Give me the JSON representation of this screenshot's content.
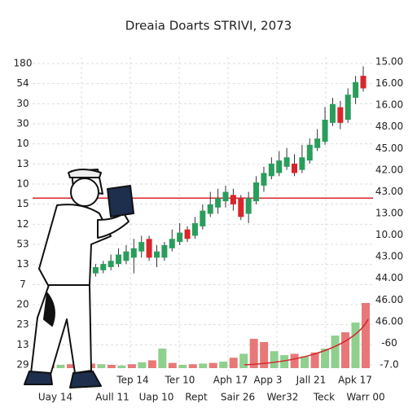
{
  "chart_data": {
    "type": "candlestick",
    "title": "Dreaia Doarts STRIVI, 2073",
    "left_axis_labels": [
      "180",
      "54",
      "30",
      "30",
      "10",
      "13",
      "10",
      "15",
      "12",
      "53",
      "13",
      "7",
      "20",
      "23",
      "13",
      "29"
    ],
    "right_axis_labels": [
      "15.00",
      "16.00",
      "16.00",
      "48.00",
      "45.00",
      "42.00",
      "43.00",
      "13.00",
      "10.00",
      "43.00",
      "44.00",
      "46.00",
      "46.00",
      "-60",
      "-7.0"
    ],
    "x_labels_top": [
      "Tep 14",
      "Ter 10",
      "Aph 17",
      "App 3",
      "Jall 21",
      "Apk 17"
    ],
    "x_labels_bottom": [
      "Uay 14",
      "Aull 11",
      "Uap 10",
      "Rept",
      "Sair 26",
      "Wer32",
      "Teck",
      "Warr 00"
    ],
    "ylim": [
      0,
      100
    ],
    "up_color": "#2a9d5c",
    "down_color": "#d9262c",
    "open": [
      30,
      31,
      32,
      33,
      34,
      35,
      36,
      38,
      42,
      36,
      36,
      39,
      41,
      45,
      43,
      46,
      50,
      52,
      54,
      56,
      55,
      50,
      54,
      59,
      62,
      63,
      65,
      66,
      64,
      67,
      71,
      73,
      79,
      84,
      80,
      87,
      94
    ],
    "close": [
      32,
      33,
      34,
      35,
      37,
      38,
      39,
      41,
      36,
      38,
      40,
      42,
      44,
      42,
      47,
      51,
      53,
      55,
      57,
      53,
      49,
      55,
      60,
      63,
      66,
      67,
      68,
      63,
      68,
      72,
      74,
      80,
      85,
      79,
      88,
      92,
      90
    ],
    "high": [
      33,
      34,
      35,
      37,
      39,
      40,
      42,
      43,
      43,
      40,
      41,
      45,
      47,
      46,
      49,
      53,
      57,
      58,
      59,
      58,
      56,
      57,
      62,
      65,
      68,
      70,
      71,
      69,
      72,
      74,
      77,
      84,
      87,
      86,
      90,
      94,
      97
    ],
    "low": [
      29,
      30,
      31,
      32,
      33,
      34,
      31,
      36,
      35,
      33,
      35,
      38,
      40,
      41,
      42,
      45,
      49,
      50,
      52,
      51,
      48,
      47,
      53,
      57,
      61,
      62,
      64,
      62,
      63,
      66,
      70,
      72,
      78,
      77,
      79,
      85,
      89
    ],
    "reference_line": 55,
    "volume": {
      "ylim": [
        0,
        100
      ],
      "values": [
        4,
        5,
        6,
        8,
        7,
        6,
        5,
        4,
        6,
        9,
        12,
        30,
        8,
        5,
        6,
        7,
        8,
        10,
        16,
        22,
        45,
        40,
        26,
        20,
        22,
        18,
        24,
        30,
        50,
        55,
        70,
        100
      ],
      "colors": [
        "#e87878",
        "#8fd08f",
        "#e87878",
        "#8fd08f",
        "#e87878",
        "#8fd08f",
        "#e87878",
        "#8fd08f",
        "#e87878",
        "#8fd08f",
        "#e87878",
        "#8fd08f",
        "#e87878",
        "#8fd08f",
        "#e87878",
        "#8fd08f",
        "#e87878",
        "#8fd08f",
        "#e87878",
        "#8fd08f",
        "#e87878",
        "#e87878",
        "#8fd08f",
        "#8fd08f",
        "#e87878",
        "#8fd08f",
        "#e87878",
        "#8fd08f",
        "#8fd08f",
        "#e87878",
        "#8fd08f",
        "#e87878"
      ]
    }
  }
}
